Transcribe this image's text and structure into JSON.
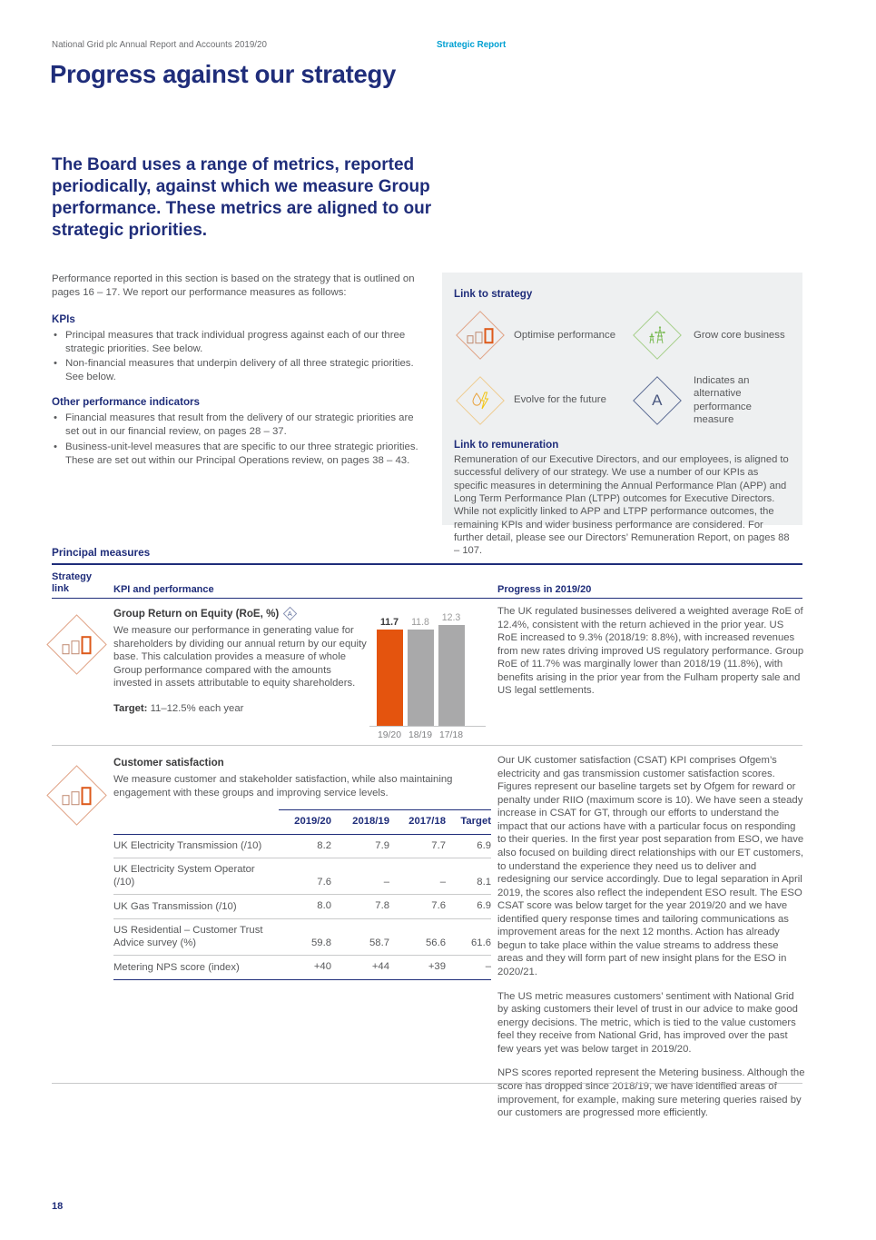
{
  "header": {
    "left": "National Grid plc Annual Report and Accounts 2019/20",
    "right": "Strategic Report"
  },
  "title": "Progress against our strategy",
  "intro": "The Board uses a range of metrics, reported periodically, against which we measure Group performance. These metrics are aligned to our strategic priorities.",
  "left_column": {
    "paragraph": "Performance reported in this section is based on the strategy that is outlined on pages 16 – 17. We report our performance measures as follows:",
    "kpis_heading": "KPIs",
    "kpis_bullets": [
      "Principal measures that track individual progress against each of our three strategic priorities. See below.",
      "Non-financial measures that underpin delivery of all three strategic priorities. See below."
    ],
    "other_heading": "Other performance indicators",
    "other_bullets": [
      "Financial measures that result from the delivery of our strategic priorities are set out in our financial review, on pages 28 – 37.",
      "Business-unit-level measures that are specific to our three strategic priorities. These are set out within our Principal Operations review, on pages 38 – 43."
    ]
  },
  "strategy_box": {
    "title": "Link to strategy",
    "items": [
      {
        "icon": "optimise-performance-icon",
        "label": "Optimise performance"
      },
      {
        "icon": "grow-core-business-icon",
        "label": "Grow core business"
      },
      {
        "icon": "evolve-for-future-icon",
        "label": "Evolve for the future"
      },
      {
        "icon": "alternative-measure-icon",
        "label": "Indicates an alternative performance measure",
        "glyph": "A"
      }
    ],
    "remuneration_heading": "Link to remuneration",
    "remuneration_text": "Remuneration of our Executive Directors, and our employees, is aligned to successful delivery of our strategy. We use a number of our KPIs as specific measures in determining the Annual Performance Plan (APP) and Long Term Performance Plan (LTPP) outcomes for Executive Directors. While not explicitly linked to APP and LTPP performance outcomes, the remaining KPIs and wider business performance are considered. For further detail, please see our Directors’ Remuneration Report, on pages 88 – 107."
  },
  "principal_measures": {
    "heading": "Principal measures",
    "columns": {
      "strategy": "Strategy link",
      "kpi": "KPI and performance",
      "progress": "Progress in 2019/20"
    }
  },
  "roe": {
    "title": "Group Return on Equity (RoE, %)",
    "alt_glyph": "A",
    "description": "We measure our performance in generating value for shareholders by dividing our annual return by our equity base. This calculation provides a measure of whole Group performance compared with the amounts invested in assets attributable to equity shareholders.",
    "target_label": "Target:",
    "target_value": "11–12.5% each year",
    "progress": "The UK regulated businesses delivered a weighted average RoE of 12.4%, consistent with the return achieved in the prior year. US RoE increased to 9.3% (2018/19: 8.8%), with increased revenues from new rates driving improved US regulatory performance. Group RoE of 11.7% was marginally lower than 2018/19 (11.8%), with benefits arising in the prior year from the Fulham property sale and US legal settlements."
  },
  "chart_data": {
    "type": "bar",
    "title": "Group Return on Equity (RoE, %)",
    "categories": [
      "19/20",
      "18/19",
      "17/18"
    ],
    "values": [
      11.7,
      11.8,
      12.3
    ],
    "xlabel": "",
    "ylabel": "RoE %",
    "ylim": [
      0,
      12.3
    ],
    "grid": false,
    "legend": "none",
    "highlight_index": 0,
    "highlight_color": "#e4540e",
    "bar_color": "#a9a9aa"
  },
  "csat": {
    "title": "Customer satisfaction",
    "description": "We measure customer and stakeholder satisfaction, while also maintaining engagement with these groups and improving service levels.",
    "table": {
      "columns": [
        "2019/20",
        "2018/19",
        "2017/18",
        "Target"
      ],
      "rows": [
        {
          "label": "UK Electricity Transmission (/10)",
          "values": [
            "8.2",
            "7.9",
            "7.7",
            "6.9"
          ]
        },
        {
          "label": "UK Electricity System Operator (/10)",
          "values": [
            "7.6",
            "–",
            "–",
            "8.1"
          ]
        },
        {
          "label": "UK Gas Transmission (/10)",
          "values": [
            "8.0",
            "7.8",
            "7.6",
            "6.9"
          ]
        },
        {
          "label": "US Residential – Customer Trust Advice survey (%)",
          "values": [
            "59.8",
            "58.7",
            "56.6",
            "61.6"
          ]
        },
        {
          "label": "Metering NPS score (index)",
          "values": [
            "+40",
            "+44",
            "+39",
            "–"
          ]
        }
      ]
    },
    "progress_paragraphs": [
      "Our UK customer satisfaction (CSAT) KPI comprises Ofgem’s electricity and gas transmission customer satisfaction scores. Figures represent our baseline targets set by Ofgem for reward or penalty under RIIO (maximum score is 10). We have seen a steady increase in CSAT for GT, through our efforts to understand the impact that our actions have with a particular focus on responding to their queries. In the first year post separation from ESO, we have also focused on building direct relationships with our ET customers, to understand the experience they need us to deliver and redesigning our service accordingly. Due to legal separation in April 2019, the scores also reflect the independent ESO result. The ESO CSAT score was below target for the year 2019/20 and we have identified query response times and tailoring communications as improvement areas for the next 12 months. Action has already begun to take place within the value streams to address these areas and they will form part of new insight plans for the ESO in 2020/21.",
      "The US metric measures customers’ sentiment with National Grid by asking customers their level of trust in our advice to make good energy decisions. The metric, which is tied to the value customers feel they receive from National Grid, has improved over the past few years yet was below target in 2019/20.",
      "NPS scores reported represent the Metering business. Although the score has dropped since 2018/19, we have identified areas of improvement, for example, making sure metering queries raised by our customers are progressed more efficiently."
    ]
  },
  "footer": {
    "page_number": "18"
  },
  "colors": {
    "navy": "#1f2d7a",
    "cyan": "#00a0d2",
    "body_gray": "#58595b",
    "box_bg": "#eef0f1",
    "bar_highlight": "#e4540e",
    "bar_gray": "#a9a9aa",
    "rule_light": "#c8c9ca"
  }
}
